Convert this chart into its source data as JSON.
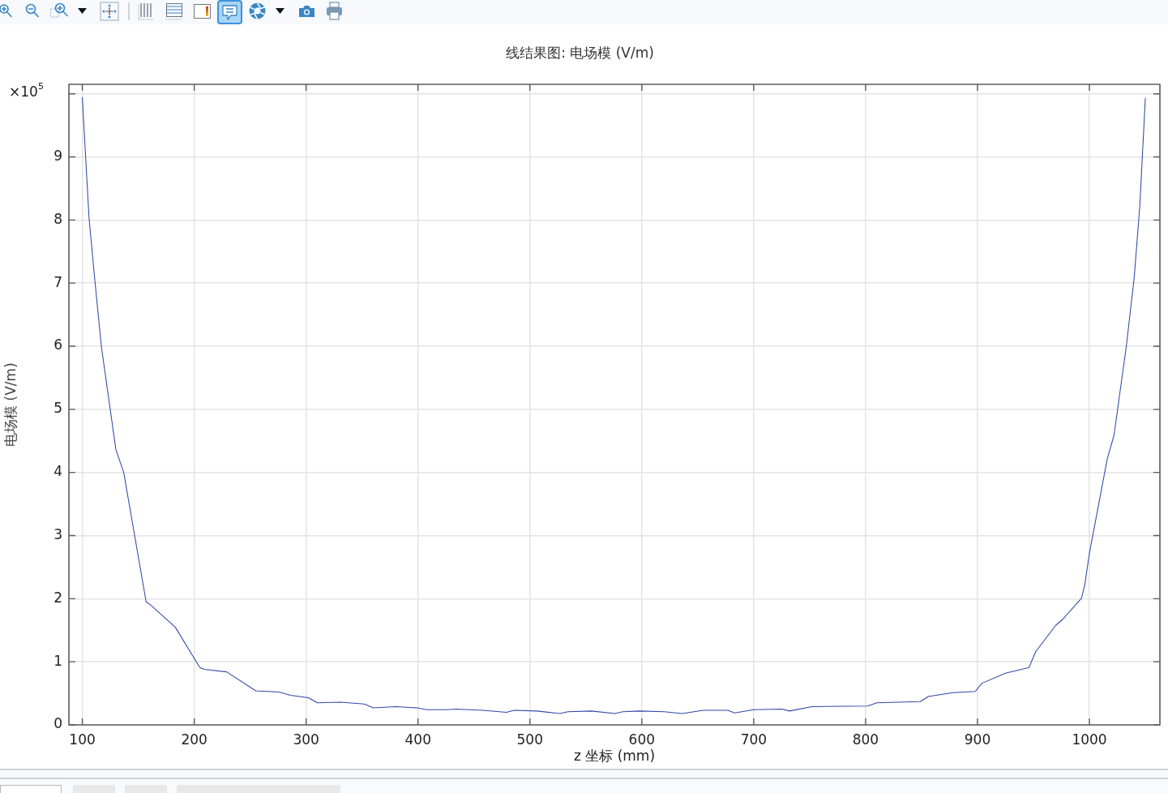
{
  "chart_data": {
    "type": "line",
    "title": "线结果图: 电场模 (V/m)",
    "xlabel": "z 坐标 (mm)",
    "ylabel": "电场模 (V/m)",
    "annotations": [
      "×10$^{5}$"
    ],
    "x": [
      100,
      106,
      111,
      117,
      130,
      137,
      157,
      161,
      183,
      205,
      209,
      229,
      255,
      276,
      286,
      302,
      310,
      331,
      352,
      360,
      380,
      399,
      408,
      426,
      434,
      458,
      479,
      486,
      506,
      527,
      534,
      555,
      576,
      583,
      598,
      620,
      636,
      655,
      677,
      683,
      700,
      725,
      732,
      752,
      802,
      810,
      849,
      856,
      878,
      898,
      904,
      925,
      946,
      952,
      970,
      976,
      993,
      996,
      1000,
      1016,
      1022,
      1033,
      1040,
      1045,
      1050
    ],
    "series": [
      {
        "color": "#3048a8",
        "values": [
          9.94,
          8.03,
          7.08,
          6.0,
          4.36,
          4.0,
          1.95,
          1.9,
          1.55,
          0.91,
          0.88,
          0.84,
          0.54,
          0.52,
          0.47,
          0.43,
          0.35,
          0.36,
          0.33,
          0.27,
          0.29,
          0.27,
          0.24,
          0.24,
          0.25,
          0.23,
          0.2,
          0.23,
          0.22,
          0.18,
          0.21,
          0.22,
          0.18,
          0.21,
          0.22,
          0.21,
          0.18,
          0.23,
          0.23,
          0.19,
          0.24,
          0.25,
          0.22,
          0.29,
          0.3,
          0.35,
          0.37,
          0.45,
          0.51,
          0.53,
          0.66,
          0.82,
          0.91,
          1.16,
          1.58,
          1.67,
          2.01,
          2.23,
          2.72,
          4.22,
          4.59,
          6.0,
          7.08,
          8.21,
          9.93
        ]
      }
    ],
    "xlim": [
      88,
      1063
    ],
    "xticks": [
      100,
      200,
      300,
      400,
      500,
      600,
      700,
      800,
      900,
      1000
    ],
    "ylim": [
      0,
      10.15
    ],
    "yticks": [
      0,
      1,
      2,
      3,
      4,
      5,
      6,
      7,
      8,
      9,
      {
        "value": 10,
        "label": null
      }
    ],
    "grid": true,
    "legend": false
  }
}
